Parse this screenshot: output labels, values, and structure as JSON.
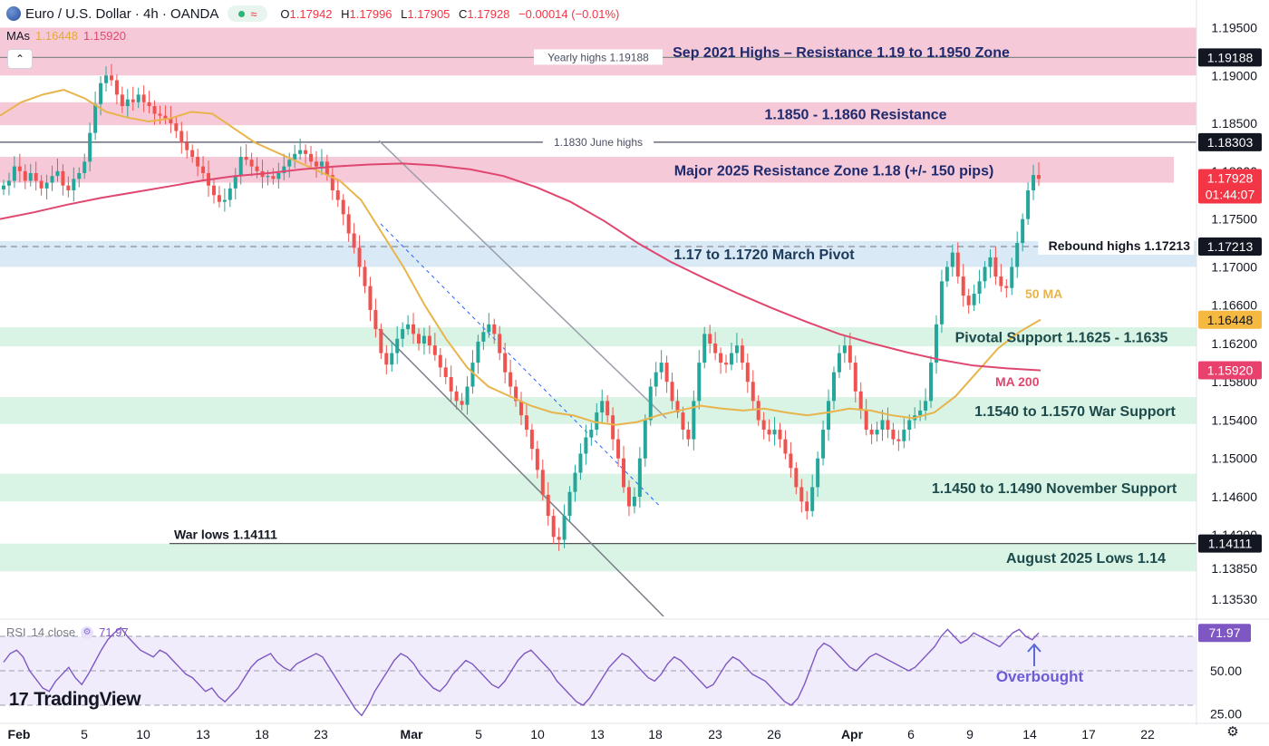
{
  "header": {
    "symbol": "Euro / U.S. Dollar · 4h · OANDA",
    "ohlc": [
      {
        "k": "O",
        "v": "1.17942"
      },
      {
        "k": "H",
        "v": "1.17996"
      },
      {
        "k": "L",
        "v": "1.17905"
      },
      {
        "k": "C",
        "v": "1.17928"
      },
      {
        "k": "",
        "v": "−0.00014 (−0.01%)"
      }
    ]
  },
  "mas": {
    "label": "MAs",
    "v1": "1.16448",
    "v2": "1.15920"
  },
  "rsi": {
    "label": "RSI",
    "params": "14 close",
    "value": "71.97"
  },
  "branding": {
    "name": "TradingView"
  },
  "colors": {
    "up": "#26a69a",
    "down": "#ef5350",
    "ma50": "#e8b44c",
    "ma200": "#e0476f",
    "rsi": "#7e57c2",
    "resistance": "#f6c6d6",
    "support": "#d7f2e4",
    "pivot": "#d7e8f5"
  },
  "chart_data": {
    "type": "candlestick",
    "title": "Euro / U.S. Dollar · 4h · OANDA",
    "yaxis_ticks": [
      "1.19500",
      "1.19000",
      "1.18500",
      "1.18000",
      "1.17500",
      "1.17000",
      "1.16600",
      "1.16200",
      "1.15800",
      "1.15400",
      "1.15000",
      "1.14600",
      "1.14200",
      "1.13850",
      "1.13530"
    ],
    "ylim": [
      1.1335,
      1.1958
    ],
    "xaxis_ticks": [
      "Feb",
      "5",
      "10",
      "13",
      "18",
      "23",
      "Mar",
      "5",
      "10",
      "13",
      "18",
      "23",
      "26",
      "Apr",
      "6",
      "9",
      "14",
      "17",
      "22"
    ],
    "price_badges": [
      {
        "text": "1.19188",
        "y": 1.19188,
        "style": "dark"
      },
      {
        "text": "1.18303",
        "y": 1.18303,
        "style": "dark"
      },
      {
        "text": "1.17928",
        "sub": "01:44:07",
        "y": 1.17928,
        "style": "red"
      },
      {
        "text": "1.17213",
        "y": 1.17213,
        "style": "dark"
      },
      {
        "text": "1.16448",
        "y": 1.16448,
        "style": "orange"
      },
      {
        "text": "1.15920",
        "y": 1.1592,
        "style": "pink"
      },
      {
        "text": "1.14111",
        "y": 1.14111,
        "style": "dark"
      }
    ],
    "zones": [
      {
        "label": "Sep 2021 Highs – Resistance 1.19 to 1.1950 Zone",
        "from": 1.19,
        "to": 1.195,
        "kind": "resistance"
      },
      {
        "label": "1.1850 - 1.1860 Resistance",
        "from": 1.1848,
        "to": 1.1872,
        "kind": "resistance"
      },
      {
        "label": "Major 2025 Resistance Zone 1.18 (+/- 150 pips)",
        "from": 1.1788,
        "to": 1.1815,
        "kind": "resistance"
      },
      {
        "label": "1.17 to 1.1720 March Pivot",
        "from": 1.17,
        "to": 1.1727,
        "kind": "pivot"
      },
      {
        "label": "Pivotal Support 1.1625 - 1.1635",
        "from": 1.1617,
        "to": 1.1637,
        "kind": "support"
      },
      {
        "label": "1.1540 to 1.1570 War Support",
        "from": 1.1536,
        "to": 1.1564,
        "kind": "support"
      },
      {
        "label": "1.1450 to 1.1490 November Support",
        "from": 1.1455,
        "to": 1.1484,
        "kind": "support"
      },
      {
        "label": "August 2025 Lows 1.14",
        "from": 1.1382,
        "to": 1.1411,
        "kind": "support"
      }
    ],
    "levels": [
      {
        "label": "Yearly highs 1.19188",
        "y": 1.19188
      },
      {
        "label": "1.1830 June highs",
        "y": 1.18303
      },
      {
        "label": "Rebound highs 1.17213",
        "y": 1.17213
      },
      {
        "label": "War lows 1.14111",
        "y": 1.14111
      }
    ],
    "annotations": [
      {
        "text": "50 MA"
      },
      {
        "text": "MA 200"
      },
      {
        "text": "Overbought"
      }
    ],
    "close_series": [
      1.1785,
      1.179,
      1.1805,
      1.18,
      1.179,
      1.1798,
      1.179,
      1.1782,
      1.1788,
      1.1795,
      1.18,
      1.1785,
      1.178,
      1.1792,
      1.1798,
      1.181,
      1.184,
      1.187,
      1.1892,
      1.19,
      1.1895,
      1.188,
      1.1868,
      1.1875,
      1.1872,
      1.188,
      1.1872,
      1.1868,
      1.186,
      1.1858,
      1.1855,
      1.185,
      1.1842,
      1.183,
      1.1822,
      1.1815,
      1.1805,
      1.1798,
      1.1785,
      1.1775,
      1.1768,
      1.177,
      1.1782,
      1.1795,
      1.1815,
      1.1812,
      1.1805,
      1.18,
      1.1794,
      1.1795,
      1.1792,
      1.1798,
      1.1805,
      1.1812,
      1.1818,
      1.1822,
      1.1818,
      1.181,
      1.1805,
      1.181,
      1.1796,
      1.178,
      1.177,
      1.1755,
      1.1735,
      1.172,
      1.17,
      1.168,
      1.1655,
      1.1635,
      1.161,
      1.1598,
      1.161,
      1.1625,
      1.1635,
      1.164,
      1.163,
      1.162,
      1.1628,
      1.1618,
      1.1608,
      1.1595,
      1.1585,
      1.157,
      1.156,
      1.1556,
      1.1575,
      1.16,
      1.1622,
      1.1632,
      1.164,
      1.163,
      1.161,
      1.159,
      1.1575,
      1.156,
      1.1545,
      1.153,
      1.151,
      1.1488,
      1.1462,
      1.144,
      1.1418,
      1.1415,
      1.144,
      1.1465,
      1.1485,
      1.1505,
      1.1522,
      1.153,
      1.1548,
      1.156,
      1.1545,
      1.152,
      1.15,
      1.147,
      1.145,
      1.146,
      1.15,
      1.154,
      1.1575,
      1.159,
      1.16,
      1.158,
      1.156,
      1.1548,
      1.153,
      1.152,
      1.156,
      1.16,
      1.163,
      1.162,
      1.161,
      1.16,
      1.1598,
      1.161,
      1.1618,
      1.16,
      1.158,
      1.156,
      1.154,
      1.153,
      1.1525,
      1.153,
      1.152,
      1.1505,
      1.149,
      1.147,
      1.1455,
      1.1445,
      1.147,
      1.15,
      1.153,
      1.156,
      1.159,
      1.161,
      1.1618,
      1.16,
      1.157,
      1.155,
      1.153,
      1.1525,
      1.153,
      1.154,
      1.153,
      1.152,
      1.1518,
      1.153,
      1.154,
      1.1545,
      1.155,
      1.156,
      1.16,
      1.164,
      1.1685,
      1.17,
      1.1715,
      1.169,
      1.167,
      1.166,
      1.1672,
      1.1685,
      1.17,
      1.171,
      1.169,
      1.168,
      1.1678,
      1.17,
      1.1725,
      1.175,
      1.178,
      1.1796,
      1.1792
    ],
    "ma50_points": [
      1.1858,
      1.1872,
      1.188,
      1.1885,
      1.1876,
      1.1862,
      1.1856,
      1.1852,
      1.1855,
      1.1862,
      1.186,
      1.1845,
      1.183,
      1.182,
      1.181,
      1.18,
      1.179,
      1.177,
      1.1735,
      1.17,
      1.166,
      1.1625,
      1.1595,
      1.1575,
      1.1565,
      1.1555,
      1.1548,
      1.1545,
      1.1538,
      1.1535,
      1.1538,
      1.1545,
      1.155,
      1.1555,
      1.1552,
      1.155,
      1.1552,
      1.1548,
      1.1545,
      1.1548,
      1.1552,
      1.155,
      1.1545,
      1.1542,
      1.1548,
      1.1565,
      1.159,
      1.1615,
      1.1632,
      1.1645
    ],
    "ma200_points": [
      1.175,
      1.1757,
      1.1765,
      1.1772,
      1.1778,
      1.1784,
      1.179,
      1.1795,
      1.1798,
      1.1802,
      1.1805,
      1.1807,
      1.1808,
      1.1806,
      1.1802,
      1.1795,
      1.1783,
      1.1768,
      1.1748,
      1.1725,
      1.1705,
      1.1688,
      1.1672,
      1.1657,
      1.1643,
      1.163,
      1.162,
      1.1611,
      1.1603,
      1.1597,
      1.1594,
      1.1592
    ],
    "rsi": {
      "ticks": [
        "71.97",
        "50.00",
        "25.00"
      ],
      "ylim": [
        20,
        80
      ],
      "values": [
        55,
        60,
        62,
        58,
        50,
        45,
        40,
        38,
        44,
        48,
        52,
        46,
        42,
        48,
        55,
        62,
        68,
        72,
        75,
        70,
        66,
        62,
        60,
        58,
        62,
        60,
        56,
        52,
        48,
        46,
        42,
        38,
        40,
        35,
        32,
        36,
        40,
        46,
        52,
        56,
        58,
        60,
        55,
        52,
        50,
        54,
        56,
        58,
        60,
        58,
        52,
        46,
        40,
        34,
        28,
        24,
        30,
        38,
        44,
        50,
        56,
        60,
        58,
        54,
        48,
        44,
        40,
        38,
        42,
        48,
        52,
        56,
        54,
        50,
        46,
        42,
        40,
        44,
        50,
        56,
        60,
        62,
        58,
        54,
        50,
        44,
        40,
        36,
        32,
        30,
        34,
        40,
        46,
        52,
        56,
        60,
        58,
        54,
        50,
        46,
        44,
        48,
        54,
        58,
        56,
        52,
        48,
        44,
        40,
        42,
        48,
        54,
        58,
        56,
        52,
        48,
        46,
        44,
        40,
        36,
        32,
        30,
        34,
        42,
        52,
        62,
        66,
        64,
        60,
        56,
        52,
        50,
        54,
        58,
        60,
        58,
        56,
        54,
        52,
        50,
        52,
        56,
        60,
        64,
        70,
        74,
        70,
        66,
        68,
        72,
        70,
        68,
        66,
        64,
        68,
        72,
        74,
        70,
        68,
        72
      ],
      "bands": [
        70,
        50,
        30
      ]
    }
  }
}
